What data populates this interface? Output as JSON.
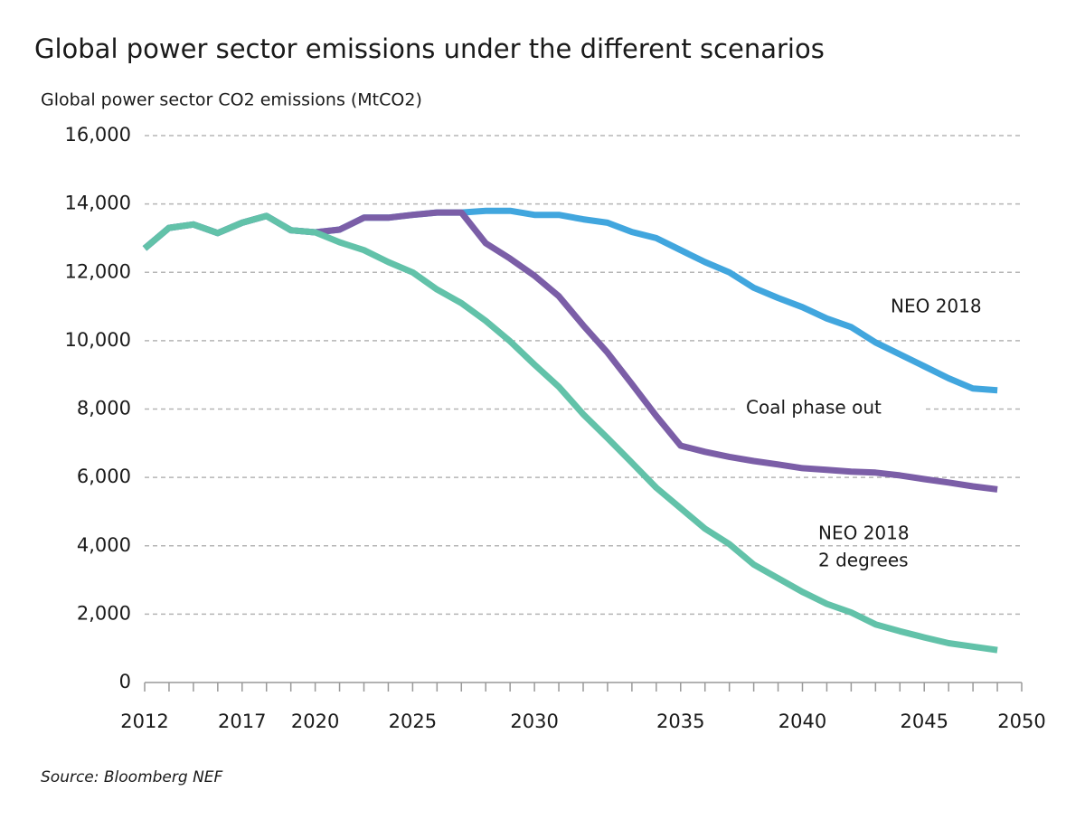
{
  "chart_data": {
    "type": "line",
    "title": "Global power sector emissions under the different scenarios",
    "y_label": "Global power sector CO2 emissions (MtCO2)",
    "source": "Source: Bloomberg NEF",
    "categories": [
      "2012",
      null,
      null,
      null,
      "2017",
      null,
      null,
      "2020",
      null,
      null,
      null,
      "2025",
      null,
      null,
      null,
      null,
      "2030",
      null,
      null,
      null,
      null,
      null,
      "2035",
      null,
      null,
      null,
      null,
      "2040",
      null,
      null,
      null,
      null,
      "2045",
      null,
      null,
      null,
      "2050"
    ],
    "series": [
      {
        "color": "#41a6de",
        "values": [
          12700,
          13300,
          13400,
          13150,
          13450,
          13650,
          13230,
          13170,
          13250,
          13600,
          13600,
          13680,
          13750,
          13750,
          13800,
          13800,
          13680,
          13680,
          13550,
          13450,
          13180,
          13000,
          12650,
          12300,
          12000,
          11550,
          11250,
          10980,
          10650,
          10400,
          9950,
          9600,
          9250,
          8900,
          8600,
          8550,
          null
        ]
      },
      {
        "color": "#7b5ea7",
        "values": [
          12700,
          13300,
          13400,
          13150,
          13450,
          13650,
          13230,
          13170,
          13250,
          13600,
          13600,
          13680,
          13750,
          13750,
          12850,
          12400,
          11900,
          11300,
          10450,
          9650,
          8730,
          7800,
          6930,
          6750,
          6600,
          6480,
          6380,
          6270,
          6220,
          6170,
          6140,
          6060,
          5950,
          5850,
          5740,
          5650,
          null
        ]
      },
      {
        "color": "#62c2a9",
        "values": [
          12700,
          13300,
          13400,
          13150,
          13450,
          13650,
          13230,
          13170,
          12880,
          12650,
          12300,
          12000,
          11500,
          11100,
          10580,
          9980,
          9300,
          8650,
          7850,
          7150,
          6430,
          5700,
          5100,
          4500,
          4050,
          3450,
          3050,
          2650,
          2300,
          2050,
          1700,
          1500,
          1320,
          1150,
          1050,
          950,
          null
        ]
      }
    ],
    "annotations": [
      [
        "NEO 2018"
      ],
      [
        "Coal phase out"
      ],
      [
        "NEO 2018",
        "2 degrees"
      ]
    ],
    "ylim": [
      0,
      16000
    ],
    "yticks": [
      0,
      {
        "value": 2000,
        "label": "2,000"
      },
      {
        "value": 4000,
        "label": "4,000"
      },
      {
        "value": 6000,
        "label": "6,000"
      },
      {
        "value": 8000,
        "label": "8,000"
      },
      {
        "value": 10000,
        "label": "10,000"
      },
      {
        "value": 12000,
        "label": "12,000"
      },
      {
        "value": 14000,
        "label": "14,000"
      },
      {
        "value": 16000,
        "label": "16,000"
      }
    ],
    "grid": true
  }
}
